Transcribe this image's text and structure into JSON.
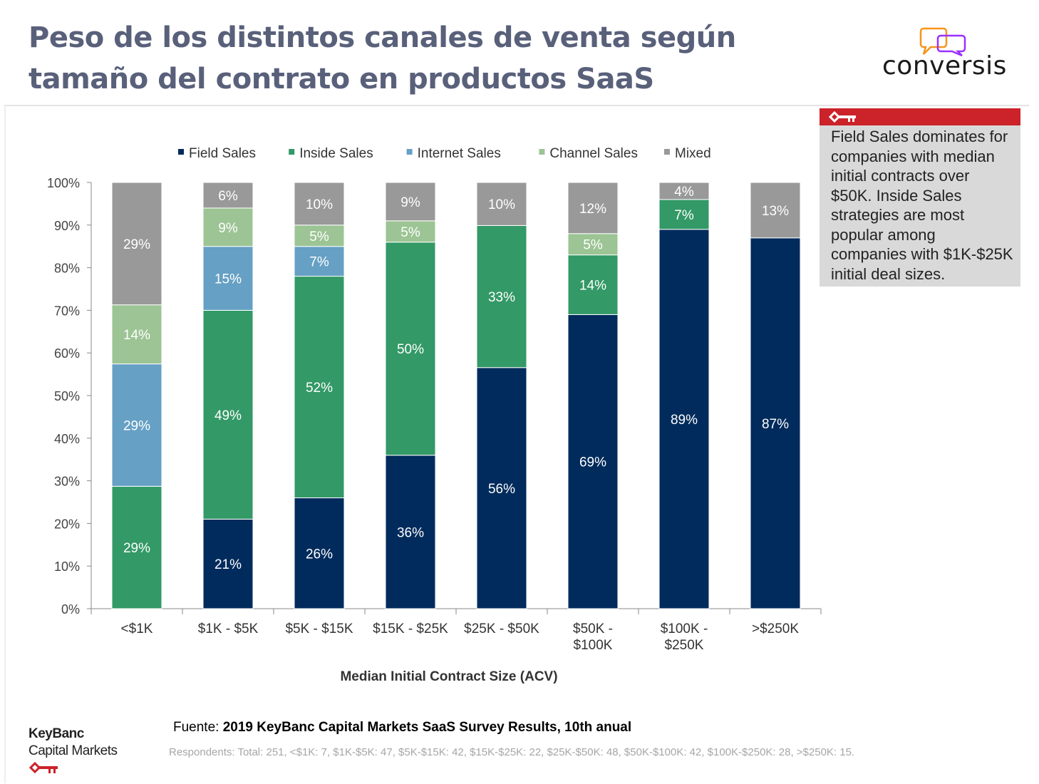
{
  "title_lines": [
    "Peso de los distintos canales de venta según",
    "tamaño del contrato en productos SaaS"
  ],
  "brand_logo": "conversis",
  "callout": {
    "icon": "key-icon",
    "text": "Field Sales dominates for companies with median initial contracts over $50K. Inside Sales strategies are most popular among companies with $1K-$25K initial deal sizes."
  },
  "footer": {
    "source_label": "Fuente:",
    "source_text": "2019 KeyBanc Capital Markets SaaS Survey Results, 10th anual",
    "respondents": "Respondents: Total: 251, <$1K: 7, $1K-$5K: 47, $5K-$15K: 42, $15K-$25K: 22, $25K-$50K: 48, $50K-$100K: 42, $100K-$250K: 28, >$250K: 15.",
    "keybanc_logo": [
      "KeyBanc",
      "Capital Markets"
    ]
  },
  "chart_data": {
    "type": "bar",
    "stacked": true,
    "xlabel": "Median Initial Contract Size (ACV)",
    "ylabel": "",
    "ylim": [
      0,
      100
    ],
    "yticks": [
      "0%",
      "10%",
      "20%",
      "30%",
      "40%",
      "50%",
      "60%",
      "70%",
      "80%",
      "90%",
      "100%"
    ],
    "legend_position": "top",
    "categories": [
      [
        "<$1K"
      ],
      [
        "$1K - $5K"
      ],
      [
        "$5K - $15K"
      ],
      [
        "$15K - $25K"
      ],
      [
        "$25K - $50K"
      ],
      [
        "$50K -",
        "$100K"
      ],
      [
        "$100K -",
        "$250K"
      ],
      [
        ">$250K"
      ]
    ],
    "series": [
      {
        "name": "Field Sales",
        "color": "#002b5c",
        "values": [
          0,
          21,
          26,
          36,
          56,
          69,
          89,
          87
        ]
      },
      {
        "name": "Inside Sales",
        "color": "#339966",
        "values": [
          29,
          49,
          52,
          50,
          33,
          14,
          7,
          0
        ]
      },
      {
        "name": "Internet Sales",
        "color": "#66a0c4",
        "values": [
          29,
          15,
          7,
          0,
          0,
          0,
          0,
          0
        ]
      },
      {
        "name": "Channel Sales",
        "color": "#9cc494",
        "values": [
          14,
          9,
          5,
          5,
          0,
          5,
          0,
          0
        ]
      },
      {
        "name": "Mixed",
        "color": "#999999",
        "values": [
          29,
          6,
          10,
          9,
          10,
          12,
          4,
          13
        ]
      }
    ]
  }
}
